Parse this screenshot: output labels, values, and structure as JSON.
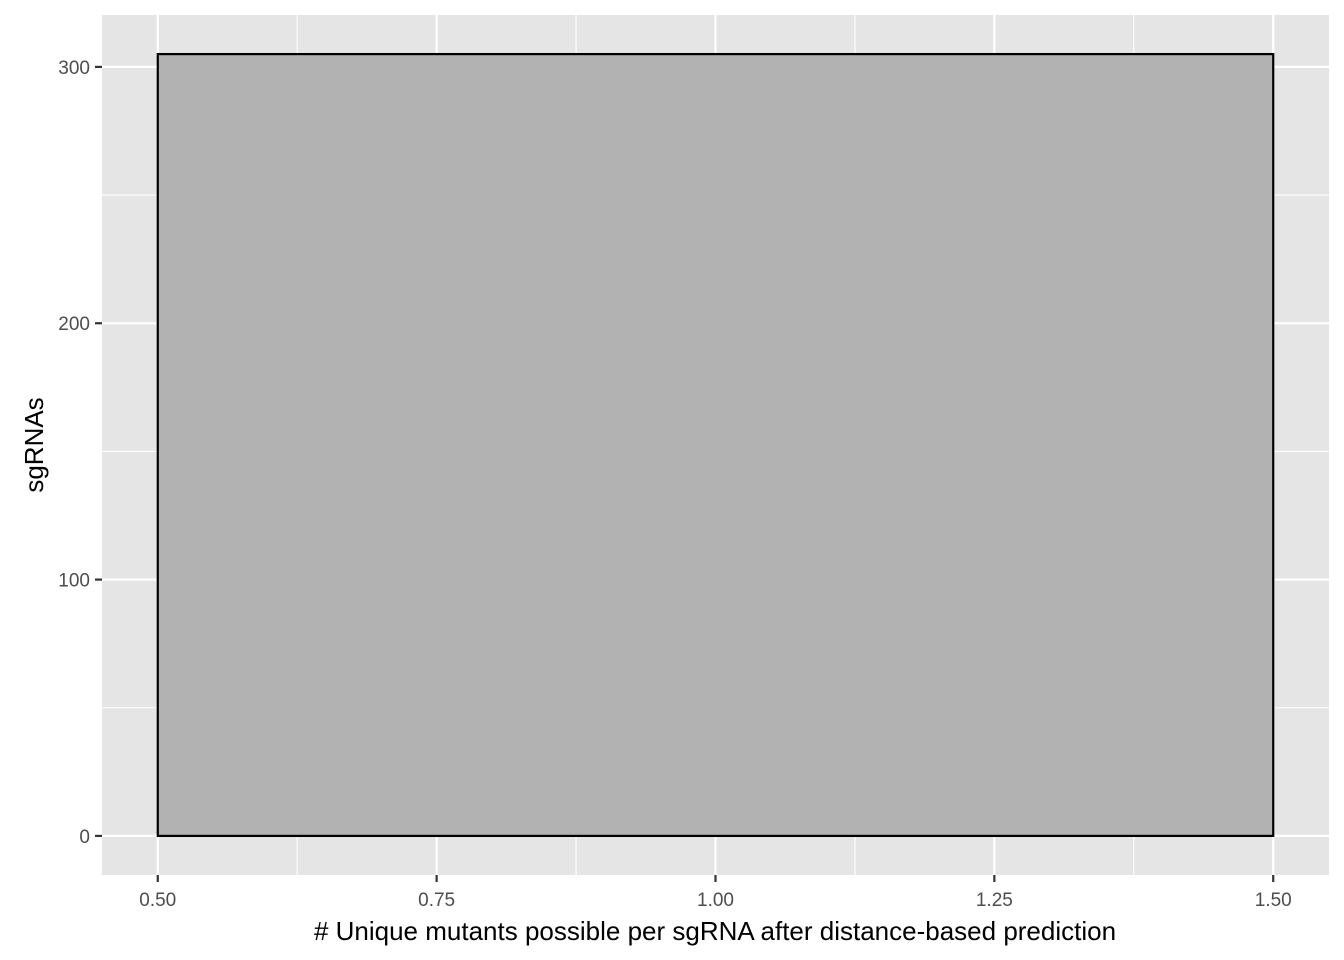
{
  "chart_data": {
    "type": "bar",
    "title": "",
    "xlabel": "# Unique mutants possible per sgRNA after distance-based prediction",
    "ylabel": "sgRNAs",
    "bars": [
      {
        "x_start": 0.5,
        "x_end": 1.5,
        "value": 305
      }
    ],
    "xlim": [
      0.45,
      1.55
    ],
    "ylim": [
      -15.25,
      320.25
    ],
    "x_ticks": [
      0.5,
      0.75,
      1.0,
      1.25,
      1.5
    ],
    "x_tick_labels": [
      "0.50",
      "0.75",
      "1.00",
      "1.25",
      "1.50"
    ],
    "y_ticks": [
      0,
      100,
      200,
      300
    ],
    "y_tick_labels": [
      "0",
      "100",
      "200",
      "300"
    ],
    "grid": true,
    "legend": "none",
    "colors": {
      "panel_background": "#e5e5e5",
      "grid": "#ffffff",
      "bar_fill": "#b2b2b2",
      "bar_outline": "#000000"
    }
  }
}
